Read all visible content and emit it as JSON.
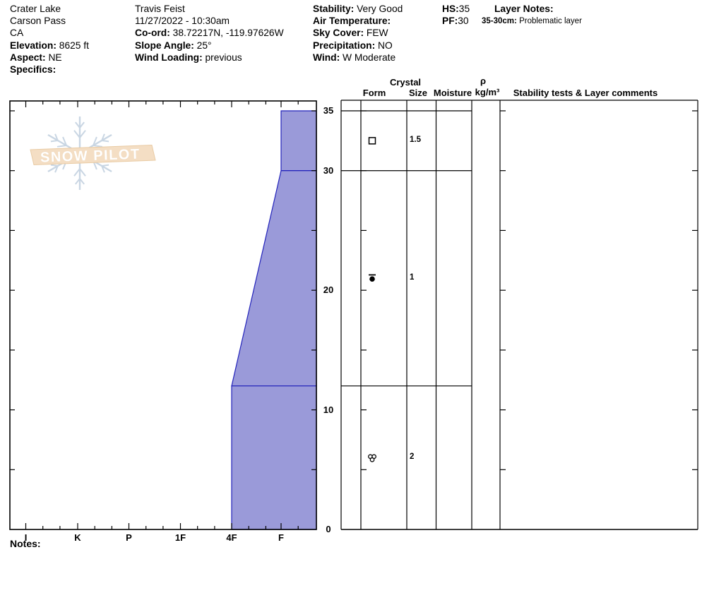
{
  "header_columns": [
    {
      "lines": [
        [
          "",
          "Crater Lake"
        ],
        [
          "",
          "Carson Pass"
        ],
        [
          "",
          "CA"
        ],
        [
          "Elevation:",
          " 8625 ft"
        ],
        [
          "Aspect:",
          " NE"
        ],
        [
          "Specifics:",
          ""
        ]
      ]
    },
    {
      "lines": [
        [
          "",
          "Travis Feist"
        ],
        [
          "",
          "11/27/2022 - 10:30am"
        ],
        [
          "Co-ord:",
          " 38.72217N, -119.97626W"
        ],
        [
          "Slope Angle:",
          " 25°"
        ],
        [
          "Wind Loading:",
          " previous"
        ]
      ]
    },
    {
      "lines": [
        [
          "Stability:",
          " Very Good"
        ],
        [
          "Air Temperature:",
          ""
        ],
        [
          "Sky Cover:",
          " FEW"
        ],
        [
          "Precipitation:",
          " NO"
        ],
        [
          "Wind:",
          " W Moderate"
        ]
      ]
    },
    {
      "lines": [
        [
          "HS:",
          "35"
        ],
        [
          "PF:",
          "30"
        ]
      ]
    }
  ],
  "layer_notes": {
    "title": "Layer Notes:",
    "entries": [
      {
        "range": "35-30cm:",
        "text": " Problematic layer"
      }
    ]
  },
  "chart_data": {
    "type": "area",
    "title": "Snow pit hand-hardness profile",
    "depth_unit": "cm",
    "hs_cm": 35,
    "pf_cm": 30,
    "depth_axis_labels": [
      35,
      30,
      20,
      10,
      0
    ],
    "depth_minor_tick_cm": 5,
    "hardness_categories": [
      "I",
      "K",
      "P",
      "1F",
      "4F",
      "F"
    ],
    "layers": [
      {
        "top_cm": 35,
        "bottom_cm": 30,
        "hardness_top": "F",
        "hardness_bottom": "F",
        "grain_form": "FC",
        "grain_symbol": "open-square",
        "grain_size_mm": "1.5"
      },
      {
        "top_cm": 30,
        "bottom_cm": 12,
        "hardness_top": "F",
        "hardness_bottom": "4F",
        "grain_form": "RG",
        "grain_symbol": "filled-dot-top-bar",
        "grain_size_mm": "1"
      },
      {
        "top_cm": 12,
        "bottom_cm": 0,
        "hardness_top": "4F",
        "hardness_bottom": "4F",
        "grain_form": "MF",
        "grain_symbol": "circle-cluster",
        "grain_size_mm": "2"
      }
    ],
    "colors": {
      "layer_fill": "#9a9ad9",
      "layer_line": "#2323bb",
      "axis": "#000000"
    },
    "grid": false,
    "legend_position": "none"
  },
  "table": {
    "crystal_header": "Crystal",
    "rho_header": "ρ",
    "col_form": "Form",
    "col_size": "Size",
    "col_moisture": "Moisture",
    "col_density_unit": "kg/m³",
    "col_stability": "Stability tests & Layer comments"
  },
  "logo": {
    "text": "SNOW PILOT",
    "icon": "snowflake-icon",
    "banner_color": "#f4dec4",
    "flake_color": "#c9d6e3"
  },
  "notes_label": "Notes:"
}
